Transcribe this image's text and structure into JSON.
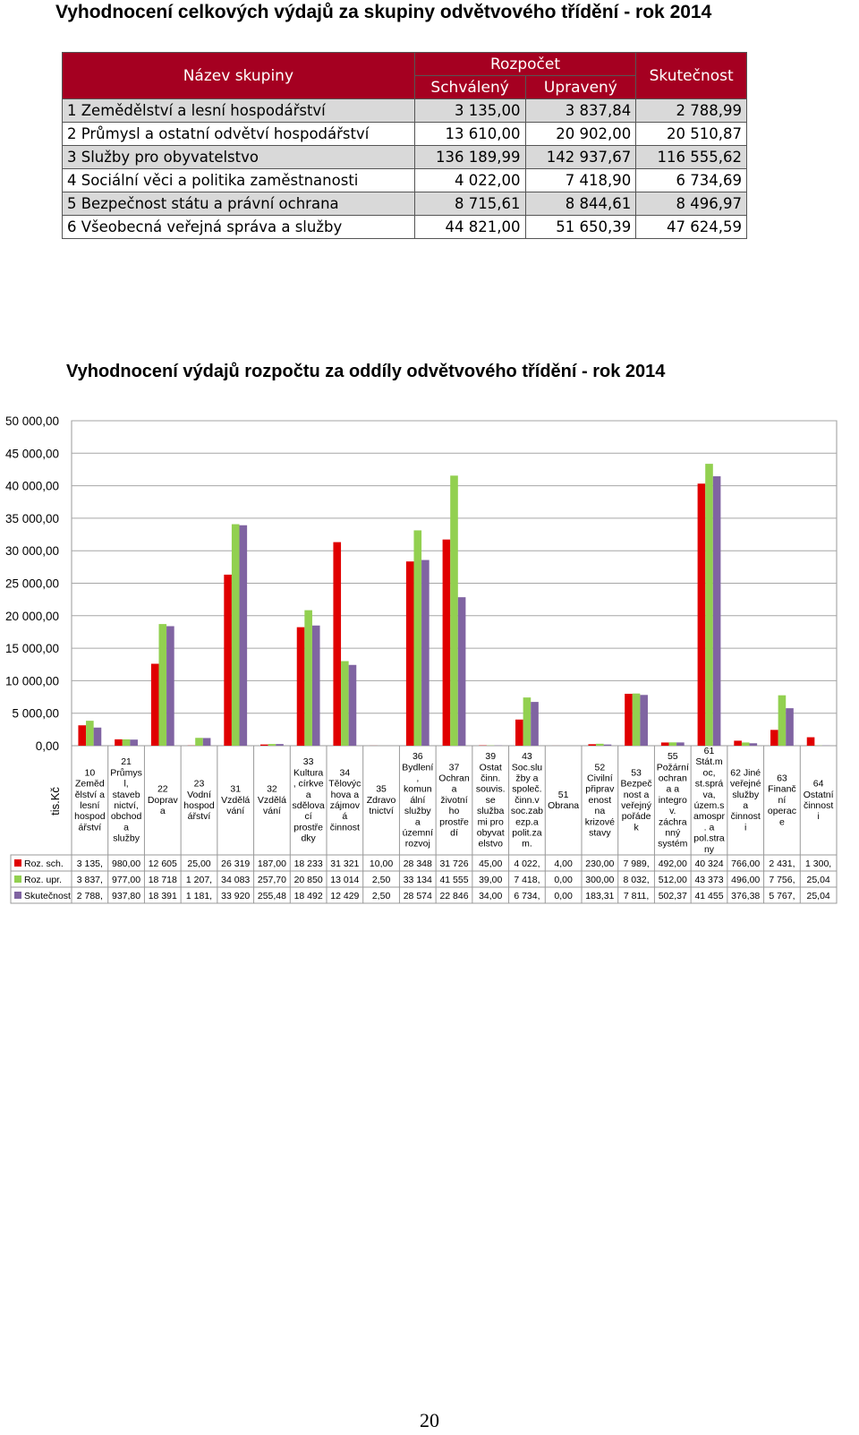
{
  "page_title": "Vyhodnocení celkových výdajů za skupiny odvětvového třídění - rok 2014",
  "summary_table": {
    "headers": {
      "name": "Název skupiny",
      "budget": "Rozpočet",
      "approved": "Schválený",
      "adjusted": "Upravený",
      "actual": "Skutečnost"
    },
    "rows": [
      {
        "name": "1 Zemědělství a lesní hospodářství",
        "approved": "3 135,00",
        "adjusted": "3 837,84",
        "actual": "2 788,99"
      },
      {
        "name": "2 Průmysl a ostatní odvětví hospodářství",
        "approved": "13 610,00",
        "adjusted": "20 902,00",
        "actual": "20 510,87"
      },
      {
        "name": "3 Služby pro obyvatelstvo",
        "approved": "136 189,99",
        "adjusted": "142 937,67",
        "actual": "116 555,62"
      },
      {
        "name": "4 Sociální věci a politika zaměstnanosti",
        "approved": "4 022,00",
        "adjusted": "7 418,90",
        "actual": "6 734,69"
      },
      {
        "name": "5 Bezpečnost státu a právní ochrana",
        "approved": "8 715,61",
        "adjusted": "8 844,61",
        "actual": "8 496,97"
      },
      {
        "name": "6 Všeobecná veřejná správa a služby",
        "approved": "44 821,00",
        "adjusted": "51 650,39",
        "actual": "47 624,59"
      }
    ]
  },
  "chart_title": "Vyhodnocení výdajů rozpočtu za oddíly odvětvového třídění - rok 2014",
  "page_number": "20",
  "colors": {
    "header_bg": "#A50021",
    "series1": "#E00000",
    "series2": "#92D050",
    "series3": "#8064A2"
  },
  "chart_data": {
    "type": "bar",
    "title": "Vyhodnocení výdajů rozpočtu za oddíly odvětvového třídění - rok 2014",
    "ylabel": "tis.Kč",
    "ylim": [
      0,
      50000
    ],
    "yticks": [
      "0,00",
      "5 000,00",
      "10 000,00",
      "15 000,00",
      "20 000,00",
      "25 000,00",
      "30 000,00",
      "35 000,00",
      "40 000,00",
      "45 000,00",
      "50 000,00"
    ],
    "grid": true,
    "categories": [
      [
        "10",
        "Zeměd",
        "ělství a",
        "lesní",
        "hospod",
        "ářství"
      ],
      [
        "21",
        "Průmys",
        "l,",
        "staveb",
        "nictví,",
        "obchod",
        "a",
        "služby"
      ],
      [
        "22",
        "Doprav",
        "a"
      ],
      [
        "23",
        "Vodní",
        "hospod",
        "ářství"
      ],
      [
        "31",
        "Vzdělá",
        "vání"
      ],
      [
        "32",
        "Vzdělá",
        "vání"
      ],
      [
        "33",
        "Kultura",
        ", církve",
        "a",
        "sdělova",
        "cí",
        "prostře",
        "dky"
      ],
      [
        "34",
        "Tělovýc",
        "hova a",
        "zájmov",
        "á",
        "činnost"
      ],
      [
        "35",
        "Zdravo",
        "tnictví"
      ],
      [
        "36",
        "Bydlení",
        ",",
        "komun",
        "ální",
        "služby",
        "a",
        "územní",
        "rozvoj"
      ],
      [
        "37",
        "Ochran",
        "a",
        "životní",
        "ho",
        "prostře",
        "dí"
      ],
      [
        "39",
        "Ostat",
        "činn.",
        "souvis.",
        "se",
        "služba",
        "mi pro",
        "obyvat",
        "elstvo"
      ],
      [
        "43",
        "Soc.slu",
        "žby a",
        "společ.",
        "činn.v",
        "soc.zab",
        "ezp.a",
        "polit.za",
        "m."
      ],
      [
        "51",
        "Obrana"
      ],
      [
        "52",
        "Civilní",
        "připrav",
        "enost",
        "na",
        "krizové",
        "stavy"
      ],
      [
        "53",
        "Bezpeč",
        "nost a",
        "veřejný",
        "pořáde",
        "k"
      ],
      [
        "55",
        "Požární",
        "ochran",
        "a a",
        "integro",
        "v.",
        "záchra",
        "nný",
        "systém"
      ],
      [
        "61",
        "Stát.m",
        "oc,",
        "st.sprá",
        "va,",
        "územ.s",
        "amospr",
        ". a",
        "pol.stra",
        "ny"
      ],
      [
        "62 Jiné",
        "veřejné",
        "služby",
        "a",
        "činnost",
        "i"
      ],
      [
        "63",
        "Finanč",
        "ní",
        "operac",
        "e"
      ],
      [
        "64",
        "Ostatní",
        "činnost",
        "i"
      ]
    ],
    "series": [
      {
        "name": "Roz. sch.",
        "values": [
          3135,
          980,
          12605,
          25,
          26319,
          187,
          18233,
          31321,
          10,
          28348,
          31726,
          45,
          4022,
          4,
          230,
          7989,
          492,
          40324,
          766,
          2431,
          1300
        ],
        "labels": [
          "3 135,",
          "980,00",
          "12 605",
          "25,00",
          "26 319",
          "187,00",
          "18 233",
          "31 321",
          "10,00",
          "28 348",
          "31 726",
          "45,00",
          "4 022,",
          "4,00",
          "230,00",
          "7 989,",
          "492,00",
          "40 324",
          "766,00",
          "2 431,",
          "1 300,"
        ]
      },
      {
        "name": "Roz. upr.",
        "values": [
          3837,
          977,
          18718,
          1207,
          34083,
          257.7,
          20850,
          13014,
          2.5,
          33134,
          41555,
          39,
          7418,
          0,
          300,
          8032,
          512,
          43373,
          496,
          7756,
          25.04
        ],
        "labels": [
          "3 837,",
          "977,00",
          "18 718",
          "1 207,",
          "34 083",
          "257,70",
          "20 850",
          "13 014",
          "2,50",
          "33 134",
          "41 555",
          "39,00",
          "7 418,",
          "0,00",
          "300,00",
          "8 032,",
          "512,00",
          "43 373",
          "496,00",
          "7 756,",
          "25,04"
        ]
      },
      {
        "name": "Skutečnost",
        "values": [
          2788,
          937.8,
          18391,
          1181,
          33920,
          255.48,
          18492,
          12429,
          2.5,
          28574,
          22846,
          34,
          6734,
          0,
          183.31,
          7811,
          502.37,
          41455,
          376.38,
          5767,
          25.04
        ],
        "labels": [
          "2 788,",
          "937,80",
          "18 391",
          "1 181,",
          "33 920",
          "255,48",
          "18 492",
          "12 429",
          "2,50",
          "28 574",
          "22 846",
          "34,00",
          "6 734,",
          "0,00",
          "183,31",
          "7 811,",
          "502,37",
          "41 455",
          "376,38",
          "5 767,",
          "25,04"
        ]
      }
    ]
  }
}
